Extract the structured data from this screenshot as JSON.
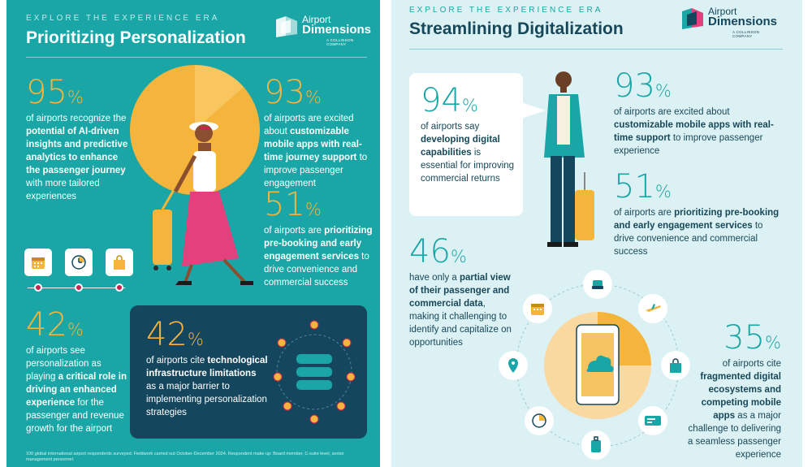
{
  "left": {
    "eyebrow": "EXPLORE THE EXPERIENCE ERA",
    "title": "Prioritizing Personalization",
    "logo": {
      "line1": "Airport",
      "line2": "Dimensions",
      "line3": "A COLLINSON COMPANY"
    },
    "stat95": {
      "num": "95",
      "pct": "%",
      "text_a": "of airports recognize the ",
      "bold": "potential of AI-driven insights and predictive analytics to enhance the passenger journey",
      "text_b": " with more tailored experiences"
    },
    "stat93": {
      "num": "93",
      "pct": "%",
      "text_a": "of airports are excited about ",
      "bold": "customizable mobile apps with real-time journey support",
      "text_b": " to improve passenger engagement"
    },
    "stat51": {
      "num": "51",
      "pct": "%",
      "text_a": "of airports are ",
      "bold": "prioritizing pre-booking and early engagement services",
      "text_b": " to drive convenience and commercial success"
    },
    "stat42a": {
      "num": "42",
      "pct": "%",
      "text_a": "of airports see personalization as playing ",
      "bold": "a critical role in driving an enhanced experience",
      "text_b": " for the passenger and revenue growth for the airport"
    },
    "stat42b": {
      "num": "42",
      "pct": "%",
      "text_a": "of airports cite ",
      "bold": "technological infrastructure limitations",
      "text_b": " as a major barrier to implementing personalization strategies"
    },
    "footnote": "100 global international airport respondents surveyed. Fieldwork carried out October-December 2024. Respondent make up: Board member, C-suite level, senior management personnel.",
    "timeline_icons": [
      "calendar-icon",
      "clock-icon",
      "shopping-bag-icon"
    ]
  },
  "right": {
    "eyebrow": "EXPLORE THE EXPERIENCE ERA",
    "title": "Streamlining Digitalization",
    "logo": {
      "line1": "Airport",
      "line2": "Dimensions",
      "line3": "A COLLINSON COMPANY"
    },
    "stat94": {
      "num": "94",
      "pct": "%",
      "text_a": "of airports say ",
      "bold": "developing digital capabilities",
      "text_b": " is essential for improving commercial returns"
    },
    "stat93": {
      "num": "93",
      "pct": "%",
      "text_a": "of airports are excited about ",
      "bold": "customizable mobile apps with real-time support",
      "text_b": " to improve passenger experience"
    },
    "stat51": {
      "num": "51",
      "pct": "%",
      "text_a": "of airports are ",
      "bold": "prioritizing pre-booking and early engagement services",
      "text_b": " to drive convenience and commercial success"
    },
    "stat46": {
      "num": "46",
      "pct": "%",
      "text_a": "have only a ",
      "bold": "partial view of their passenger and commercial data",
      "text_b": ", making it challenging to identify and capitalize on opportunities"
    },
    "stat35": {
      "num": "35",
      "pct": "%",
      "text_a": "of airports cite ",
      "bold": "fragmented digital ecosystems and competing mobile apps",
      "text_b": " as a major challenge to delivering a seamless passenger experience"
    },
    "orbit_icons": [
      "seat-icon",
      "calendar-icon",
      "airplane-icon",
      "location-pin-icon",
      "shopping-bag-icon",
      "clock-icon",
      "ticket-icon",
      "luggage-icon",
      "cloud-icon"
    ]
  },
  "colors": {
    "teal": "#1aa6a6",
    "navy": "#14475e",
    "gold": "#f5b53d",
    "magenta": "#c8234e",
    "pale": "#dcf1f3"
  }
}
